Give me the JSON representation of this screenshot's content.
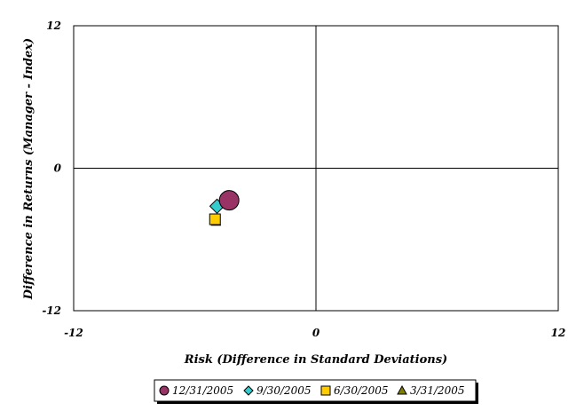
{
  "chart_data": {
    "type": "scatter",
    "xlabel": "Risk (Difference in Standard Deviations)",
    "ylabel": "Difference in Returns (Manager - Index)",
    "xlim": [
      -12,
      12
    ],
    "ylim": [
      -12,
      12
    ],
    "x_ticks": [
      "-12",
      "0",
      "12"
    ],
    "y_ticks": [
      "12",
      "0",
      "-12"
    ],
    "grid": false,
    "legend_position": "bottom",
    "series": [
      {
        "name": "12/31/2005",
        "marker": "circle",
        "color": "#993366",
        "x": -4.3,
        "y": -2.7
      },
      {
        "name": "9/30/2005",
        "marker": "diamond",
        "color": "#33CCCC",
        "x": -4.9,
        "y": -3.2
      },
      {
        "name": "6/30/2005",
        "marker": "square",
        "color": "#FFCC00",
        "x": -5.0,
        "y": -4.3
      },
      {
        "name": "3/31/2005",
        "marker": "triangle",
        "color": "#808000",
        "x": -4.95,
        "y": -4.5
      }
    ]
  }
}
